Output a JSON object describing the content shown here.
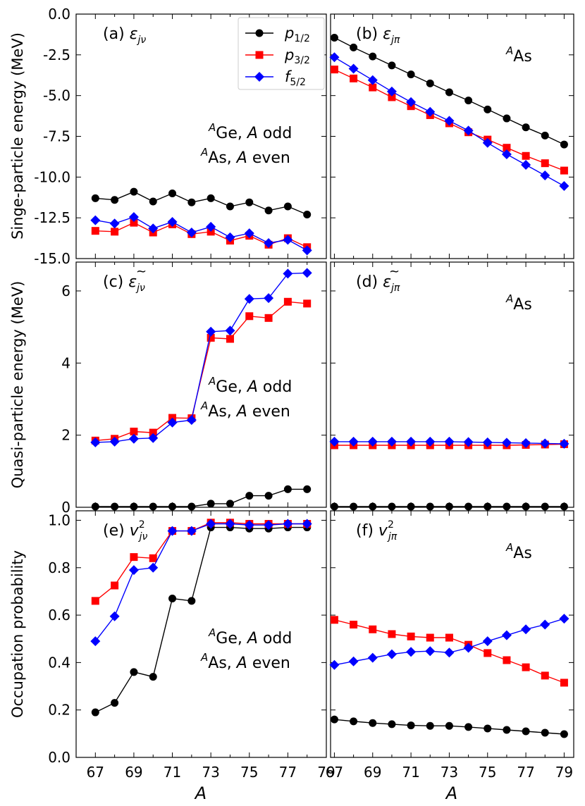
{
  "figure": {
    "x_label": "A",
    "colors": {
      "p12": "#000000",
      "p32": "#ff0000",
      "f52": "#0000ff"
    },
    "legend": [
      {
        "key": "p12",
        "marker": "circle",
        "label": "p",
        "sub": "1/2"
      },
      {
        "key": "p32",
        "marker": "square",
        "label": "p",
        "sub": "3/2"
      },
      {
        "key": "f52",
        "marker": "diamond",
        "label": "f",
        "sub": "5/2"
      }
    ],
    "row_labels": [
      "Singe-particle energy (MeV)",
      "Quasi-particle energy (MeV)",
      "Occupation probability"
    ]
  },
  "chart_data": [
    {
      "id": "a",
      "type": "line",
      "title": "(a) ε",
      "title_sub": "jν",
      "tilde": false,
      "sup": "",
      "annotation": [
        "AGe, A odd",
        "AAs, A even"
      ],
      "xlim": [
        66,
        79
      ],
      "xticks": [
        67,
        69,
        71,
        73,
        75,
        77,
        79
      ],
      "minor_xticks": [
        68,
        70,
        72,
        74,
        76,
        78
      ],
      "ylim": [
        -15,
        0
      ],
      "yticks": [
        0.0,
        -2.5,
        -5.0,
        -7.5,
        -10.0,
        -12.5,
        -15.0
      ],
      "ytick_labels": [
        "0.0",
        "-2.5",
        "-5.0",
        "-7.5",
        "-10.0",
        "-12.5",
        "-15.0"
      ],
      "x": [
        67,
        68,
        69,
        70,
        71,
        72,
        73,
        74,
        75,
        76,
        77,
        78
      ],
      "series": [
        {
          "name": "p1/2",
          "key": "p12",
          "values": [
            -11.3,
            -11.4,
            -10.9,
            -11.5,
            -11.0,
            -11.55,
            -11.3,
            -11.8,
            -11.55,
            -12.05,
            -11.8,
            -12.3
          ]
        },
        {
          "name": "p3/2",
          "key": "p32",
          "values": [
            -13.3,
            -13.35,
            -12.8,
            -13.4,
            -12.9,
            -13.5,
            -13.35,
            -13.9,
            -13.6,
            -14.15,
            -13.75,
            -14.3
          ]
        },
        {
          "name": "f5/2",
          "key": "f52",
          "values": [
            -12.65,
            -12.85,
            -12.45,
            -13.15,
            -12.75,
            -13.4,
            -13.05,
            -13.7,
            -13.45,
            -14.05,
            -13.85,
            -14.5
          ]
        }
      ]
    },
    {
      "id": "b",
      "type": "line",
      "title": "(b) ε",
      "title_sub": "jπ",
      "tilde": false,
      "sup": "",
      "annotation": [
        "AAs"
      ],
      "xlim": [
        66.8,
        79.5
      ],
      "xticks": [
        67,
        69,
        71,
        73,
        75,
        77,
        79
      ],
      "minor_xticks": [
        68,
        70,
        72,
        74,
        76,
        78
      ],
      "ylim": [
        -15,
        0
      ],
      "yticks": [
        0.0,
        -2.5,
        -5.0,
        -7.5,
        -10.0,
        -12.5,
        -15.0
      ],
      "ytick_labels": [],
      "x": [
        67,
        68,
        69,
        70,
        71,
        72,
        73,
        74,
        75,
        76,
        77,
        78,
        79
      ],
      "series": [
        {
          "name": "p1/2",
          "key": "p12",
          "values": [
            -1.45,
            -2.05,
            -2.6,
            -3.15,
            -3.7,
            -4.25,
            -4.8,
            -5.3,
            -5.85,
            -6.4,
            -6.95,
            -7.45,
            -8.0
          ]
        },
        {
          "name": "p3/2",
          "key": "p32",
          "values": [
            -3.4,
            -3.95,
            -4.5,
            -5.1,
            -5.65,
            -6.2,
            -6.7,
            -7.25,
            -7.7,
            -8.2,
            -8.7,
            -9.15,
            -9.6
          ]
        },
        {
          "name": "f5/2",
          "key": "f52",
          "values": [
            -2.65,
            -3.35,
            -4.05,
            -4.75,
            -5.4,
            -6.0,
            -6.55,
            -7.15,
            -7.9,
            -8.6,
            -9.25,
            -9.9,
            -10.55
          ]
        }
      ]
    },
    {
      "id": "c",
      "type": "line",
      "title": "(c) ε",
      "title_sub": "jν",
      "tilde": true,
      "sup": "",
      "annotation": [
        "AGe, A odd",
        "AAs, A even"
      ],
      "xlim": [
        66,
        79
      ],
      "xticks": [
        67,
        69,
        71,
        73,
        75,
        77,
        79
      ],
      "minor_xticks": [
        68,
        70,
        72,
        74,
        76,
        78
      ],
      "ylim": [
        0,
        6.8
      ],
      "yticks": [
        0,
        2,
        4,
        6
      ],
      "ytick_labels": [
        "0",
        "2",
        "4",
        "6"
      ],
      "x": [
        67,
        68,
        69,
        70,
        71,
        72,
        73,
        74,
        75,
        76,
        77,
        78
      ],
      "series": [
        {
          "name": "p1/2",
          "key": "p12",
          "values": [
            0.02,
            0.02,
            0.02,
            0.02,
            0.02,
            0.02,
            0.1,
            0.1,
            0.32,
            0.32,
            0.5,
            0.5
          ]
        },
        {
          "name": "p3/2",
          "key": "p32",
          "values": [
            1.85,
            1.9,
            2.1,
            2.07,
            2.48,
            2.47,
            4.7,
            4.67,
            5.3,
            5.25,
            5.7,
            5.65
          ]
        },
        {
          "name": "f5/2",
          "key": "f52",
          "values": [
            1.8,
            1.82,
            1.9,
            1.92,
            2.35,
            2.42,
            4.87,
            4.9,
            5.78,
            5.8,
            6.48,
            6.5
          ]
        }
      ]
    },
    {
      "id": "d",
      "type": "line",
      "title": "(d) ε",
      "title_sub": "jπ",
      "tilde": true,
      "sup": "",
      "annotation": [
        "AAs"
      ],
      "xlim": [
        66.8,
        79.5
      ],
      "xticks": [
        67,
        69,
        71,
        73,
        75,
        77,
        79
      ],
      "minor_xticks": [
        68,
        70,
        72,
        74,
        76,
        78
      ],
      "ylim": [
        0,
        6.8
      ],
      "yticks": [
        0,
        2,
        4,
        6
      ],
      "ytick_labels": [],
      "x": [
        67,
        68,
        69,
        70,
        71,
        72,
        73,
        74,
        75,
        76,
        77,
        78,
        79
      ],
      "series": [
        {
          "name": "p1/2",
          "key": "p12",
          "values": [
            0.02,
            0.02,
            0.02,
            0.02,
            0.02,
            0.02,
            0.02,
            0.02,
            0.02,
            0.02,
            0.02,
            0.02,
            0.02
          ]
        },
        {
          "name": "p3/2",
          "key": "p32",
          "values": [
            1.72,
            1.72,
            1.72,
            1.72,
            1.72,
            1.72,
            1.72,
            1.72,
            1.72,
            1.72,
            1.73,
            1.74,
            1.75
          ]
        },
        {
          "name": "f5/2",
          "key": "f52",
          "values": [
            1.82,
            1.82,
            1.82,
            1.82,
            1.82,
            1.82,
            1.82,
            1.81,
            1.8,
            1.79,
            1.78,
            1.77,
            1.76
          ]
        }
      ]
    },
    {
      "id": "e",
      "type": "line",
      "title": "(e) v",
      "title_sub": "jν",
      "tilde": false,
      "sup": "2",
      "annotation": [
        "AGe, A odd",
        "AAs, A even"
      ],
      "xlim": [
        66,
        79
      ],
      "xticks": [
        67,
        69,
        71,
        73,
        75,
        77,
        79
      ],
      "minor_xticks": [
        68,
        70,
        72,
        74,
        76,
        78
      ],
      "ylim": [
        0,
        1.04
      ],
      "yticks": [
        0.0,
        0.2,
        0.4,
        0.6,
        0.8,
        1.0
      ],
      "ytick_labels": [
        "0.0",
        "0.2",
        "0.4",
        "0.6",
        "0.8",
        "1.0"
      ],
      "xtick_labels": [
        "67",
        "69",
        "71",
        "73",
        "75",
        "77",
        "79"
      ],
      "x": [
        67,
        68,
        69,
        70,
        71,
        72,
        73,
        74,
        75,
        76,
        77,
        78
      ],
      "series": [
        {
          "name": "p1/2",
          "key": "p12",
          "values": [
            0.19,
            0.23,
            0.36,
            0.34,
            0.67,
            0.66,
            0.97,
            0.97,
            0.965,
            0.965,
            0.97,
            0.97
          ]
        },
        {
          "name": "p3/2",
          "key": "p32",
          "values": [
            0.66,
            0.725,
            0.845,
            0.84,
            0.955,
            0.955,
            0.99,
            0.99,
            0.985,
            0.985,
            0.985,
            0.985
          ]
        },
        {
          "name": "f5/2",
          "key": "f52",
          "values": [
            0.49,
            0.595,
            0.79,
            0.8,
            0.955,
            0.955,
            0.985,
            0.985,
            0.98,
            0.98,
            0.985,
            0.985
          ]
        }
      ]
    },
    {
      "id": "f",
      "type": "line",
      "title": "(f) v",
      "title_sub": "jπ",
      "tilde": false,
      "sup": "2",
      "annotation": [
        "AAs"
      ],
      "xlim": [
        66.8,
        79.5
      ],
      "xticks": [
        67,
        69,
        71,
        73,
        75,
        77,
        79
      ],
      "minor_xticks": [
        68,
        70,
        72,
        74,
        76,
        78
      ],
      "ylim": [
        0,
        1.04
      ],
      "yticks": [
        0.0,
        0.2,
        0.4,
        0.6,
        0.8,
        1.0
      ],
      "ytick_labels": [],
      "xtick_labels": [
        "67",
        "69",
        "71",
        "73",
        "75",
        "77",
        "79"
      ],
      "x": [
        67,
        68,
        69,
        70,
        71,
        72,
        73,
        74,
        75,
        76,
        77,
        78,
        79
      ],
      "series": [
        {
          "name": "p1/2",
          "key": "p12",
          "values": [
            0.16,
            0.152,
            0.145,
            0.14,
            0.135,
            0.133,
            0.133,
            0.128,
            0.122,
            0.116,
            0.11,
            0.104,
            0.098
          ]
        },
        {
          "name": "p3/2",
          "key": "p32",
          "values": [
            0.58,
            0.56,
            0.54,
            0.52,
            0.51,
            0.505,
            0.505,
            0.475,
            0.44,
            0.41,
            0.38,
            0.345,
            0.315
          ]
        },
        {
          "name": "f5/2",
          "key": "f52",
          "values": [
            0.39,
            0.405,
            0.42,
            0.435,
            0.445,
            0.448,
            0.442,
            0.462,
            0.49,
            0.515,
            0.54,
            0.56,
            0.585
          ]
        }
      ]
    }
  ]
}
